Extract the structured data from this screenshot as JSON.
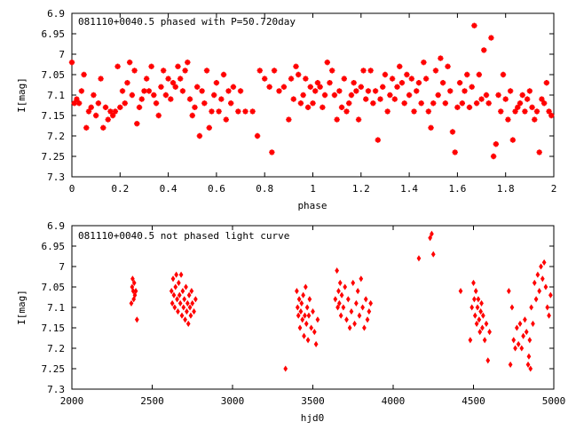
{
  "chart_data": [
    {
      "type": "scatter",
      "title": "081110+0040.5 phased with P=50.720day",
      "xlabel": "phase",
      "ylabel": "I[mag]",
      "xlim": [
        0,
        2
      ],
      "ylim": [
        7.3,
        6.9
      ],
      "y_inverted": true,
      "x_ticks": [
        "0",
        "0.2",
        "0.4",
        "0.6",
        "0.8",
        "1",
        "1.2",
        "1.4",
        "1.6",
        "1.8",
        "2"
      ],
      "x_tick_values": [
        0,
        0.2,
        0.4,
        0.6,
        0.8,
        1,
        1.2,
        1.4,
        1.6,
        1.8,
        2
      ],
      "y_ticks": [
        "6.9",
        "6.95",
        "7",
        "7.05",
        "7.1",
        "7.15",
        "7.2",
        "7.25",
        "7.3"
      ],
      "y_tick_values": [
        6.9,
        6.95,
        7,
        7.05,
        7.1,
        7.15,
        7.2,
        7.25,
        7.3
      ],
      "marker_color": "#ff0000",
      "grid": false,
      "points": [
        [
          0.0,
          7.02
        ],
        [
          0.01,
          7.12
        ],
        [
          0.02,
          7.11
        ],
        [
          0.03,
          7.12
        ],
        [
          0.04,
          7.09
        ],
        [
          0.05,
          7.05
        ],
        [
          0.06,
          7.18
        ],
        [
          0.07,
          7.14
        ],
        [
          0.08,
          7.13
        ],
        [
          0.09,
          7.1
        ],
        [
          0.1,
          7.15
        ],
        [
          0.11,
          7.12
        ],
        [
          0.12,
          7.06
        ],
        [
          0.13,
          7.18
        ],
        [
          0.14,
          7.13
        ],
        [
          0.15,
          7.16
        ],
        [
          0.16,
          7.14
        ],
        [
          0.17,
          7.15
        ],
        [
          0.18,
          7.14
        ],
        [
          0.19,
          7.03
        ],
        [
          0.2,
          7.13
        ],
        [
          0.21,
          7.09
        ],
        [
          0.22,
          7.12
        ],
        [
          0.23,
          7.07
        ],
        [
          0.24,
          7.02
        ],
        [
          0.25,
          7.1
        ],
        [
          0.26,
          7.04
        ],
        [
          0.27,
          7.17
        ],
        [
          0.28,
          7.13
        ],
        [
          0.29,
          7.11
        ],
        [
          0.3,
          7.09
        ],
        [
          0.31,
          7.06
        ],
        [
          0.32,
          7.09
        ],
        [
          0.33,
          7.03
        ],
        [
          0.34,
          7.1
        ],
        [
          0.35,
          7.12
        ],
        [
          0.36,
          7.15
        ],
        [
          0.37,
          7.08
        ],
        [
          0.38,
          7.04
        ],
        [
          0.39,
          7.1
        ],
        [
          0.4,
          7.06
        ],
        [
          0.41,
          7.11
        ],
        [
          0.42,
          7.07
        ],
        [
          0.43,
          7.08
        ],
        [
          0.44,
          7.03
        ],
        [
          0.45,
          7.06
        ],
        [
          0.46,
          7.09
        ],
        [
          0.47,
          7.04
        ],
        [
          0.48,
          7.02
        ],
        [
          0.49,
          7.11
        ],
        [
          0.5,
          7.15
        ],
        [
          0.51,
          7.13
        ],
        [
          0.52,
          7.08
        ],
        [
          0.53,
          7.2
        ],
        [
          0.54,
          7.09
        ],
        [
          0.55,
          7.12
        ],
        [
          0.56,
          7.04
        ],
        [
          0.57,
          7.18
        ],
        [
          0.58,
          7.14
        ],
        [
          0.59,
          7.1
        ],
        [
          0.6,
          7.07
        ],
        [
          0.61,
          7.14
        ],
        [
          0.62,
          7.11
        ],
        [
          0.63,
          7.05
        ],
        [
          0.64,
          7.16
        ],
        [
          0.65,
          7.09
        ],
        [
          0.66,
          7.12
        ],
        [
          0.67,
          7.08
        ],
        [
          0.69,
          7.14
        ],
        [
          0.7,
          7.09
        ],
        [
          0.72,
          7.14
        ],
        [
          0.75,
          7.14
        ],
        [
          0.77,
          7.2
        ],
        [
          0.78,
          7.04
        ],
        [
          0.8,
          7.06
        ],
        [
          0.82,
          7.08
        ],
        [
          0.83,
          7.24
        ],
        [
          0.84,
          7.04
        ],
        [
          0.86,
          7.09
        ],
        [
          0.88,
          7.08
        ],
        [
          0.9,
          7.16
        ],
        [
          0.91,
          7.06
        ],
        [
          0.92,
          7.11
        ],
        [
          0.93,
          7.03
        ],
        [
          0.94,
          7.05
        ],
        [
          0.95,
          7.12
        ],
        [
          0.96,
          7.1
        ],
        [
          0.97,
          7.06
        ],
        [
          0.98,
          7.13
        ],
        [
          0.99,
          7.08
        ],
        [
          1.0,
          7.12
        ],
        [
          1.01,
          7.09
        ],
        [
          1.02,
          7.07
        ],
        [
          1.03,
          7.08
        ],
        [
          1.04,
          7.13
        ],
        [
          1.05,
          7.1
        ],
        [
          1.06,
          7.02
        ],
        [
          1.07,
          7.07
        ],
        [
          1.08,
          7.04
        ],
        [
          1.09,
          7.1
        ],
        [
          1.1,
          7.16
        ],
        [
          1.11,
          7.09
        ],
        [
          1.12,
          7.13
        ],
        [
          1.13,
          7.06
        ],
        [
          1.14,
          7.14
        ],
        [
          1.15,
          7.12
        ],
        [
          1.16,
          7.1
        ],
        [
          1.17,
          7.07
        ],
        [
          1.18,
          7.09
        ],
        [
          1.19,
          7.16
        ],
        [
          1.2,
          7.08
        ],
        [
          1.21,
          7.04
        ],
        [
          1.22,
          7.11
        ],
        [
          1.23,
          7.09
        ],
        [
          1.24,
          7.04
        ],
        [
          1.25,
          7.12
        ],
        [
          1.26,
          7.09
        ],
        [
          1.27,
          7.21
        ],
        [
          1.28,
          7.11
        ],
        [
          1.29,
          7.08
        ],
        [
          1.3,
          7.05
        ],
        [
          1.31,
          7.14
        ],
        [
          1.32,
          7.1
        ],
        [
          1.33,
          7.06
        ],
        [
          1.34,
          7.11
        ],
        [
          1.35,
          7.08
        ],
        [
          1.36,
          7.03
        ],
        [
          1.37,
          7.07
        ],
        [
          1.38,
          7.12
        ],
        [
          1.39,
          7.05
        ],
        [
          1.4,
          7.1
        ],
        [
          1.41,
          7.06
        ],
        [
          1.42,
          7.14
        ],
        [
          1.43,
          7.09
        ],
        [
          1.44,
          7.07
        ],
        [
          1.45,
          7.12
        ],
        [
          1.46,
          7.02
        ],
        [
          1.47,
          7.06
        ],
        [
          1.48,
          7.14
        ],
        [
          1.49,
          7.18
        ],
        [
          1.5,
          7.12
        ],
        [
          1.51,
          7.04
        ],
        [
          1.52,
          7.1
        ],
        [
          1.53,
          7.01
        ],
        [
          1.54,
          7.07
        ],
        [
          1.55,
          7.12
        ],
        [
          1.56,
          7.03
        ],
        [
          1.57,
          7.09
        ],
        [
          1.58,
          7.19
        ],
        [
          1.59,
          7.24
        ],
        [
          1.6,
          7.13
        ],
        [
          1.61,
          7.07
        ],
        [
          1.62,
          7.12
        ],
        [
          1.63,
          7.09
        ],
        [
          1.64,
          7.05
        ],
        [
          1.65,
          7.13
        ],
        [
          1.66,
          7.08
        ],
        [
          1.67,
          6.93
        ],
        [
          1.68,
          7.12
        ],
        [
          1.69,
          7.05
        ],
        [
          1.7,
          7.11
        ],
        [
          1.71,
          6.99
        ],
        [
          1.72,
          7.1
        ],
        [
          1.73,
          7.12
        ],
        [
          1.74,
          6.96
        ],
        [
          1.75,
          7.25
        ],
        [
          1.76,
          7.22
        ],
        [
          1.77,
          7.1
        ],
        [
          1.78,
          7.14
        ],
        [
          1.79,
          7.05
        ],
        [
          1.8,
          7.11
        ],
        [
          1.81,
          7.16
        ],
        [
          1.82,
          7.09
        ],
        [
          1.83,
          7.21
        ],
        [
          1.84,
          7.14
        ],
        [
          1.85,
          7.13
        ],
        [
          1.86,
          7.12
        ],
        [
          1.87,
          7.1
        ],
        [
          1.88,
          7.14
        ],
        [
          1.89,
          7.11
        ],
        [
          1.9,
          7.09
        ],
        [
          1.91,
          7.13
        ],
        [
          1.92,
          7.16
        ],
        [
          1.93,
          7.14
        ],
        [
          1.94,
          7.24
        ],
        [
          1.95,
          7.11
        ],
        [
          1.96,
          7.12
        ],
        [
          1.97,
          7.07
        ],
        [
          1.98,
          7.14
        ],
        [
          1.99,
          7.15
        ]
      ]
    },
    {
      "type": "scatter",
      "title": "081110+0040.5 not phased light curve",
      "xlabel": "hjd0",
      "ylabel": "I[mag]",
      "xlim": [
        2000,
        5000
      ],
      "ylim": [
        7.3,
        6.9
      ],
      "y_inverted": true,
      "x_ticks": [
        "2000",
        "2500",
        "3000",
        "3500",
        "4000",
        "4500",
        "5000"
      ],
      "x_tick_values": [
        2000,
        2500,
        3000,
        3500,
        4000,
        4500,
        5000
      ],
      "y_ticks": [
        "6.9",
        "6.95",
        "7",
        "7.05",
        "7.1",
        "7.15",
        "7.2",
        "7.25",
        "7.3"
      ],
      "y_tick_values": [
        6.9,
        6.95,
        7,
        7.05,
        7.1,
        7.15,
        7.2,
        7.25,
        7.3
      ],
      "marker_color": "#ff0000",
      "grid": false,
      "points": [
        [
          2370,
          7.09
        ],
        [
          2375,
          7.05
        ],
        [
          2378,
          7.03
        ],
        [
          2382,
          7.06
        ],
        [
          2385,
          7.08
        ],
        [
          2388,
          7.04
        ],
        [
          2392,
          7.07
        ],
        [
          2398,
          7.06
        ],
        [
          2405,
          7.13
        ],
        [
          2620,
          7.06
        ],
        [
          2625,
          7.09
        ],
        [
          2630,
          7.03
        ],
        [
          2635,
          7.07
        ],
        [
          2640,
          7.1
        ],
        [
          2645,
          7.05
        ],
        [
          2650,
          7.02
        ],
        [
          2655,
          7.08
        ],
        [
          2660,
          7.11
        ],
        [
          2665,
          7.04
        ],
        [
          2670,
          7.07
        ],
        [
          2675,
          7.09
        ],
        [
          2680,
          7.02
        ],
        [
          2685,
          7.12
        ],
        [
          2690,
          7.06
        ],
        [
          2695,
          7.1
        ],
        [
          2700,
          7.08
        ],
        [
          2705,
          7.13
        ],
        [
          2710,
          7.05
        ],
        [
          2715,
          7.11
        ],
        [
          2720,
          7.09
        ],
        [
          2725,
          7.14
        ],
        [
          2730,
          7.07
        ],
        [
          2735,
          7.1
        ],
        [
          2740,
          7.12
        ],
        [
          2745,
          7.06
        ],
        [
          2750,
          7.09
        ],
        [
          2760,
          7.11
        ],
        [
          2770,
          7.08
        ],
        [
          3330,
          7.25
        ],
        [
          3400,
          7.06
        ],
        [
          3405,
          7.1
        ],
        [
          3410,
          7.12
        ],
        [
          3415,
          7.08
        ],
        [
          3420,
          7.15
        ],
        [
          3425,
          7.11
        ],
        [
          3430,
          7.09
        ],
        [
          3435,
          7.13
        ],
        [
          3440,
          7.07
        ],
        [
          3445,
          7.17
        ],
        [
          3450,
          7.12
        ],
        [
          3455,
          7.05
        ],
        [
          3460,
          7.14
        ],
        [
          3465,
          7.1
        ],
        [
          3470,
          7.18
        ],
        [
          3475,
          7.12
        ],
        [
          3480,
          7.08
        ],
        [
          3490,
          7.15
        ],
        [
          3500,
          7.11
        ],
        [
          3510,
          7.16
        ],
        [
          3520,
          7.19
        ],
        [
          3530,
          7.13
        ],
        [
          3640,
          7.08
        ],
        [
          3650,
          7.01
        ],
        [
          3655,
          7.1
        ],
        [
          3660,
          7.06
        ],
        [
          3665,
          7.09
        ],
        [
          3670,
          7.04
        ],
        [
          3675,
          7.12
        ],
        [
          3680,
          7.07
        ],
        [
          3690,
          7.1
        ],
        [
          3700,
          7.05
        ],
        [
          3710,
          7.13
        ],
        [
          3720,
          7.08
        ],
        [
          3730,
          7.15
        ],
        [
          3740,
          7.11
        ],
        [
          3750,
          7.04
        ],
        [
          3760,
          7.14
        ],
        [
          3770,
          7.09
        ],
        [
          3780,
          7.06
        ],
        [
          3790,
          7.12
        ],
        [
          3800,
          7.03
        ],
        [
          3810,
          7.1
        ],
        [
          3820,
          7.15
        ],
        [
          3830,
          7.08
        ],
        [
          3840,
          7.13
        ],
        [
          3850,
          7.11
        ],
        [
          3860,
          7.09
        ],
        [
          4160,
          6.98
        ],
        [
          4230,
          6.93
        ],
        [
          4240,
          6.92
        ],
        [
          4250,
          6.97
        ],
        [
          4420,
          7.06
        ],
        [
          4480,
          7.18
        ],
        [
          4490,
          7.1
        ],
        [
          4500,
          7.04
        ],
        [
          4505,
          7.08
        ],
        [
          4510,
          7.12
        ],
        [
          4515,
          7.06
        ],
        [
          4520,
          7.14
        ],
        [
          4525,
          7.1
        ],
        [
          4530,
          7.08
        ],
        [
          4535,
          7.13
        ],
        [
          4540,
          7.16
        ],
        [
          4545,
          7.11
        ],
        [
          4550,
          7.09
        ],
        [
          4555,
          7.15
        ],
        [
          4560,
          7.12
        ],
        [
          4570,
          7.18
        ],
        [
          4580,
          7.14
        ],
        [
          4590,
          7.23
        ],
        [
          4600,
          7.16
        ],
        [
          4720,
          7.06
        ],
        [
          4730,
          7.24
        ],
        [
          4740,
          7.1
        ],
        [
          4750,
          7.18
        ],
        [
          4760,
          7.2
        ],
        [
          4770,
          7.15
        ],
        [
          4780,
          7.19
        ],
        [
          4790,
          7.14
        ],
        [
          4800,
          7.2
        ],
        [
          4810,
          7.17
        ],
        [
          4820,
          7.13
        ],
        [
          4830,
          7.16
        ],
        [
          4840,
          7.24
        ],
        [
          4845,
          7.22
        ],
        [
          4850,
          7.18
        ],
        [
          4855,
          7.25
        ],
        [
          4860,
          7.1
        ],
        [
          4870,
          7.14
        ],
        [
          4880,
          7.04
        ],
        [
          4890,
          7.08
        ],
        [
          4900,
          7.02
        ],
        [
          4910,
          7.06
        ],
        [
          4920,
          7.0
        ],
        [
          4930,
          7.03
        ],
        [
          4940,
          6.99
        ],
        [
          4950,
          7.05
        ],
        [
          4960,
          7.1
        ],
        [
          4970,
          7.12
        ],
        [
          4980,
          7.07
        ]
      ]
    }
  ]
}
